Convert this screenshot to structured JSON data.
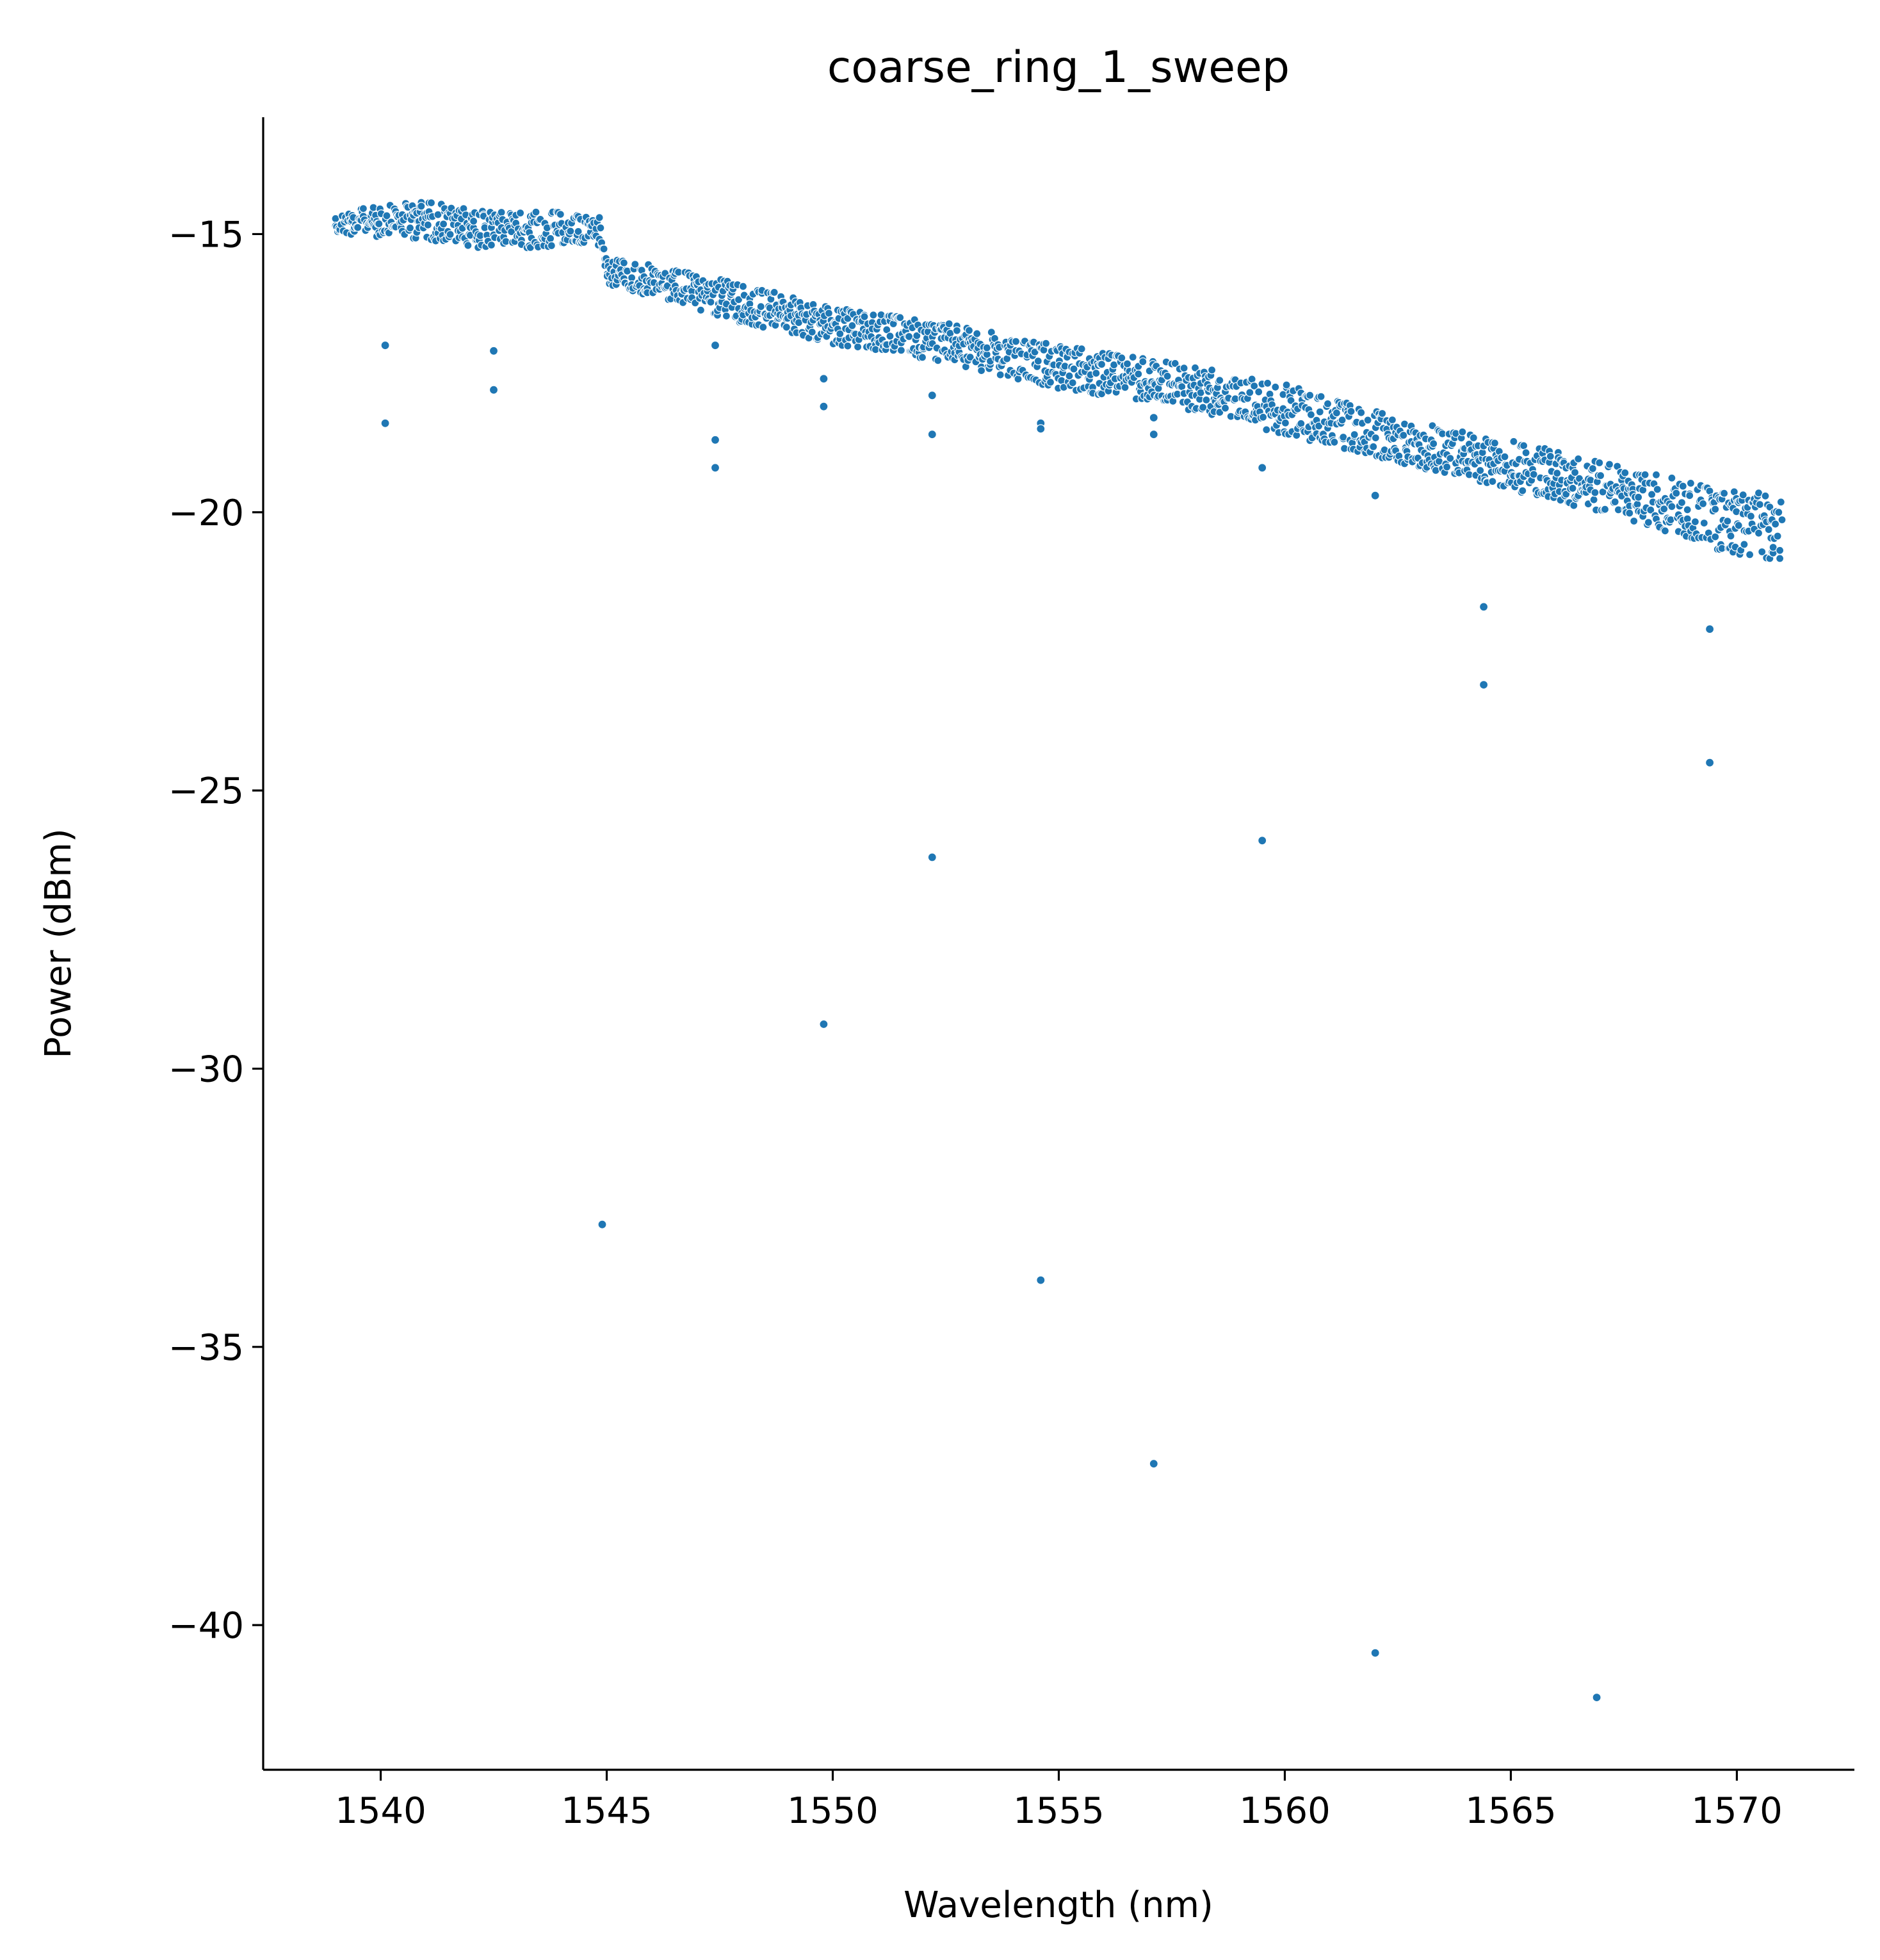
{
  "chart_data": {
    "type": "scatter",
    "title": "coarse_ring_1_sweep",
    "xlabel": "Wavelength (nm)",
    "ylabel": "Power (dBm)",
    "xlim": [
      1537.4,
      1572.6
    ],
    "ylim": [
      -42.6,
      -12.9
    ],
    "xticks": [
      1540,
      1545,
      1550,
      1555,
      1560,
      1565,
      1570
    ],
    "xtick_labels": [
      "1540",
      "1545",
      "1550",
      "1555",
      "1560",
      "1565",
      "1570"
    ],
    "yticks": [
      -15,
      -20,
      -25,
      -30,
      -35,
      -40
    ],
    "ytick_labels": [
      "−15",
      "−20",
      "−25",
      "−30",
      "−35",
      "−40"
    ],
    "grid": false,
    "legend": null,
    "marker_color": "#1f77b4",
    "series": [
      {
        "x_range": [
          1539.0,
          1571.0
        ],
        "band": [
          {
            "x": 1539.0,
            "y_top": -14.6,
            "y_bottom": -15.0
          },
          {
            "x": 1541.0,
            "y_top": -14.4,
            "y_bottom": -15.1
          },
          {
            "x": 1542.5,
            "y_top": -14.6,
            "y_bottom": -15.3
          },
          {
            "x": 1544.9,
            "y_top": -14.6,
            "y_bottom": -15.2
          },
          {
            "x": 1545.0,
            "y_top": -15.4,
            "y_bottom": -15.9
          },
          {
            "x": 1547.5,
            "y_top": -15.8,
            "y_bottom": -16.5
          },
          {
            "x": 1550.0,
            "y_top": -16.3,
            "y_bottom": -17.0
          },
          {
            "x": 1552.5,
            "y_top": -16.6,
            "y_bottom": -17.3
          },
          {
            "x": 1555.0,
            "y_top": -17.0,
            "y_bottom": -17.8
          },
          {
            "x": 1557.5,
            "y_top": -17.3,
            "y_bottom": -18.1
          },
          {
            "x": 1560.0,
            "y_top": -17.7,
            "y_bottom": -18.6
          },
          {
            "x": 1562.5,
            "y_top": -18.3,
            "y_bottom": -19.1
          },
          {
            "x": 1565.0,
            "y_top": -18.7,
            "y_bottom": -19.6
          },
          {
            "x": 1567.5,
            "y_top": -19.2,
            "y_bottom": -20.1
          },
          {
            "x": 1570.0,
            "y_top": -19.6,
            "y_bottom": -20.8
          },
          {
            "x": 1571.0,
            "y_top": -19.7,
            "y_bottom": -20.9
          }
        ],
        "outliers": [
          {
            "x": 1540.1,
            "y": -17.0
          },
          {
            "x": 1540.1,
            "y": -18.4
          },
          {
            "x": 1542.5,
            "y": -17.1
          },
          {
            "x": 1542.5,
            "y": -17.8
          },
          {
            "x": 1544.9,
            "y": -32.8
          },
          {
            "x": 1547.4,
            "y": -17.0
          },
          {
            "x": 1547.4,
            "y": -18.7
          },
          {
            "x": 1547.4,
            "y": -19.2
          },
          {
            "x": 1549.8,
            "y": -17.6
          },
          {
            "x": 1549.8,
            "y": -18.1
          },
          {
            "x": 1549.8,
            "y": -29.2
          },
          {
            "x": 1552.2,
            "y": -17.9
          },
          {
            "x": 1552.2,
            "y": -18.6
          },
          {
            "x": 1552.2,
            "y": -26.2
          },
          {
            "x": 1554.6,
            "y": -18.4
          },
          {
            "x": 1554.6,
            "y": -18.5
          },
          {
            "x": 1554.6,
            "y": -33.8
          },
          {
            "x": 1557.1,
            "y": -18.3
          },
          {
            "x": 1557.1,
            "y": -18.6
          },
          {
            "x": 1557.1,
            "y": -37.1
          },
          {
            "x": 1559.5,
            "y": -19.2
          },
          {
            "x": 1559.5,
            "y": -25.9
          },
          {
            "x": 1562.0,
            "y": -19.7
          },
          {
            "x": 1562.0,
            "y": -40.5
          },
          {
            "x": 1564.4,
            "y": -21.7
          },
          {
            "x": 1564.4,
            "y": -23.1
          },
          {
            "x": 1566.9,
            "y": -41.3
          },
          {
            "x": 1569.4,
            "y": -22.1
          },
          {
            "x": 1569.4,
            "y": -24.5
          }
        ]
      }
    ]
  }
}
